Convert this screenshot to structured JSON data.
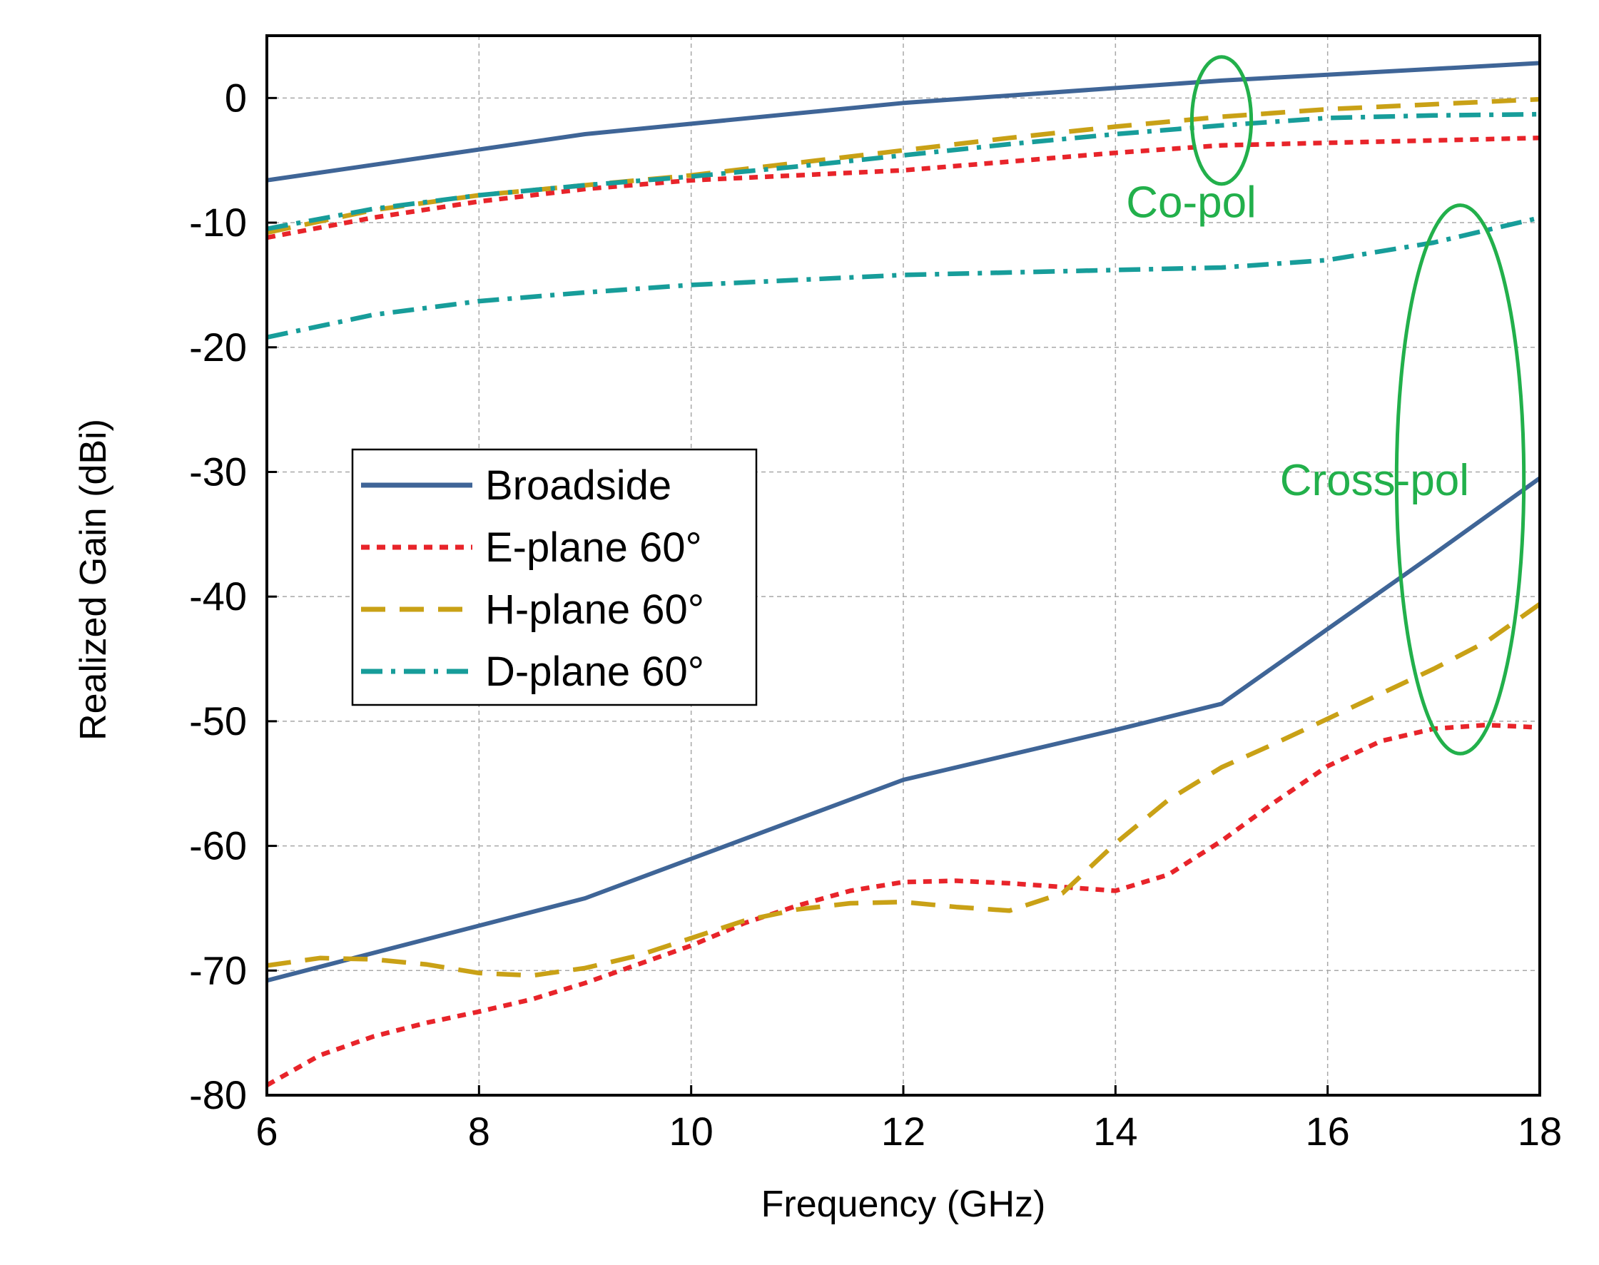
{
  "chart_data": {
    "type": "line",
    "title": "",
    "xlabel": "Frequency (GHz)",
    "ylabel": "Realized Gain (dBi)",
    "xlim": [
      6,
      18
    ],
    "ylim": [
      -80,
      5
    ],
    "xticks": [
      6,
      8,
      10,
      12,
      14,
      16,
      18
    ],
    "yticks": [
      0,
      -10,
      -20,
      -30,
      -40,
      -50,
      -60,
      -70,
      -80
    ],
    "grid": true,
    "legend_position": "center-left",
    "series": [
      {
        "name": "Broadside",
        "group": "co-pol",
        "color": "#3f6597",
        "style": "solid",
        "in_legend": true,
        "x": [
          6,
          9,
          12,
          15,
          18
        ],
        "y": [
          -6.6,
          -2.9,
          -0.4,
          1.4,
          2.8
        ]
      },
      {
        "name": "E-plane 60°",
        "group": "co-pol",
        "color": "#e8242a",
        "style": "dot",
        "in_legend": true,
        "x": [
          6,
          7,
          8,
          9,
          10,
          11,
          12,
          13,
          14,
          15,
          16,
          17,
          18
        ],
        "y": [
          -11.2,
          -9.6,
          -8.3,
          -7.3,
          -6.6,
          -6.2,
          -5.8,
          -5.1,
          -4.4,
          -3.8,
          -3.6,
          -3.4,
          -3.2
        ]
      },
      {
        "name": "H-plane 60°",
        "group": "co-pol",
        "color": "#c9a116",
        "style": "dash",
        "in_legend": true,
        "x": [
          6,
          7,
          8,
          9,
          10,
          11,
          12,
          13,
          14,
          15,
          16,
          17,
          18
        ],
        "y": [
          -10.8,
          -9.0,
          -7.8,
          -7.0,
          -6.2,
          -5.2,
          -4.2,
          -3.2,
          -2.3,
          -1.5,
          -0.9,
          -0.5,
          -0.1
        ]
      },
      {
        "name": "D-plane 60°",
        "group": "co-pol",
        "color": "#179d9a",
        "style": "dashdot",
        "in_legend": true,
        "x": [
          6,
          7,
          8,
          9,
          10,
          11,
          12,
          13,
          14,
          15,
          16,
          17,
          18
        ],
        "y": [
          -10.5,
          -8.9,
          -7.8,
          -7.0,
          -6.3,
          -5.5,
          -4.6,
          -3.7,
          -2.9,
          -2.2,
          -1.6,
          -1.4,
          -1.3
        ]
      },
      {
        "name": "D-plane 60° (2)",
        "group": "co-pol",
        "color": "#179d9a",
        "style": "dashdot",
        "in_legend": false,
        "x": [
          6,
          7,
          8,
          9,
          10,
          11,
          12,
          13,
          14,
          15,
          16,
          17,
          18
        ],
        "y": [
          -19.2,
          -17.4,
          -16.3,
          -15.6,
          -15.0,
          -14.6,
          -14.2,
          -14.0,
          -13.8,
          -13.6,
          -13.0,
          -11.6,
          -9.6
        ]
      },
      {
        "name": "Broadside (cross-pol)",
        "group": "cross-pol",
        "color": "#3f6597",
        "style": "solid",
        "in_legend": false,
        "x": [
          6,
          9,
          12,
          14,
          15,
          16,
          17,
          18
        ],
        "y": [
          -70.8,
          -64.2,
          -54.7,
          -50.7,
          -48.6,
          -42.6,
          -36.6,
          -30.5
        ]
      },
      {
        "name": "E-plane 60° (cross-pol)",
        "group": "cross-pol",
        "color": "#e8242a",
        "style": "dot",
        "in_legend": false,
        "x": [
          6,
          6.5,
          7,
          7.5,
          8,
          8.5,
          9,
          9.5,
          10,
          10.5,
          11,
          11.5,
          12,
          12.5,
          13,
          13.5,
          14,
          14.5,
          15,
          15.5,
          16,
          16.5,
          17,
          17.5,
          18
        ],
        "y": [
          -79.2,
          -76.8,
          -75.3,
          -74.2,
          -73.3,
          -72.3,
          -71.0,
          -69.5,
          -68.0,
          -66.2,
          -64.8,
          -63.6,
          -62.9,
          -62.8,
          -63.0,
          -63.3,
          -63.6,
          -62.3,
          -59.6,
          -56.5,
          -53.6,
          -51.6,
          -50.6,
          -50.3,
          -50.5
        ]
      },
      {
        "name": "H-plane 60° (cross-pol)",
        "group": "cross-pol",
        "color": "#c9a116",
        "style": "dash",
        "in_legend": false,
        "x": [
          6,
          6.5,
          7,
          7.5,
          8,
          8.5,
          9,
          9.5,
          10,
          10.5,
          11,
          11.5,
          12,
          12.5,
          13,
          13.5,
          14,
          14.5,
          15,
          15.5,
          16,
          16.5,
          17,
          17.5,
          18
        ],
        "y": [
          -69.6,
          -69.0,
          -69.1,
          -69.5,
          -70.2,
          -70.4,
          -69.8,
          -68.8,
          -67.4,
          -66.0,
          -65.1,
          -64.6,
          -64.5,
          -64.9,
          -65.2,
          -63.8,
          -59.8,
          -56.3,
          -53.7,
          -51.8,
          -49.8,
          -47.8,
          -45.8,
          -43.6,
          -40.6
        ]
      }
    ],
    "legend_items": [
      {
        "label": "Broadside",
        "color": "#3f6597",
        "style": "solid"
      },
      {
        "label": "E-plane 60°",
        "color": "#e8242a",
        "style": "dot"
      },
      {
        "label": "H-plane 60°",
        "color": "#c9a116",
        "style": "dash"
      },
      {
        "label": "D-plane 60°",
        "color": "#179d9a",
        "style": "dashdot"
      }
    ],
    "annotations": [
      {
        "text": "Co-pol",
        "color": "#22b04b",
        "target": {
          "x": 15,
          "y": -1.8,
          "rx": 0.28,
          "ry": 5.1
        },
        "label_at": {
          "x": 14.1,
          "y": -8.3
        }
      },
      {
        "text": "Cross-pol",
        "color": "#22b04b",
        "target": {
          "x": 17.25,
          "y": -30.6,
          "rx": 0.6,
          "ry": 22.0
        },
        "label_at": {
          "x": 15.55,
          "y": -30.6
        }
      }
    ]
  }
}
